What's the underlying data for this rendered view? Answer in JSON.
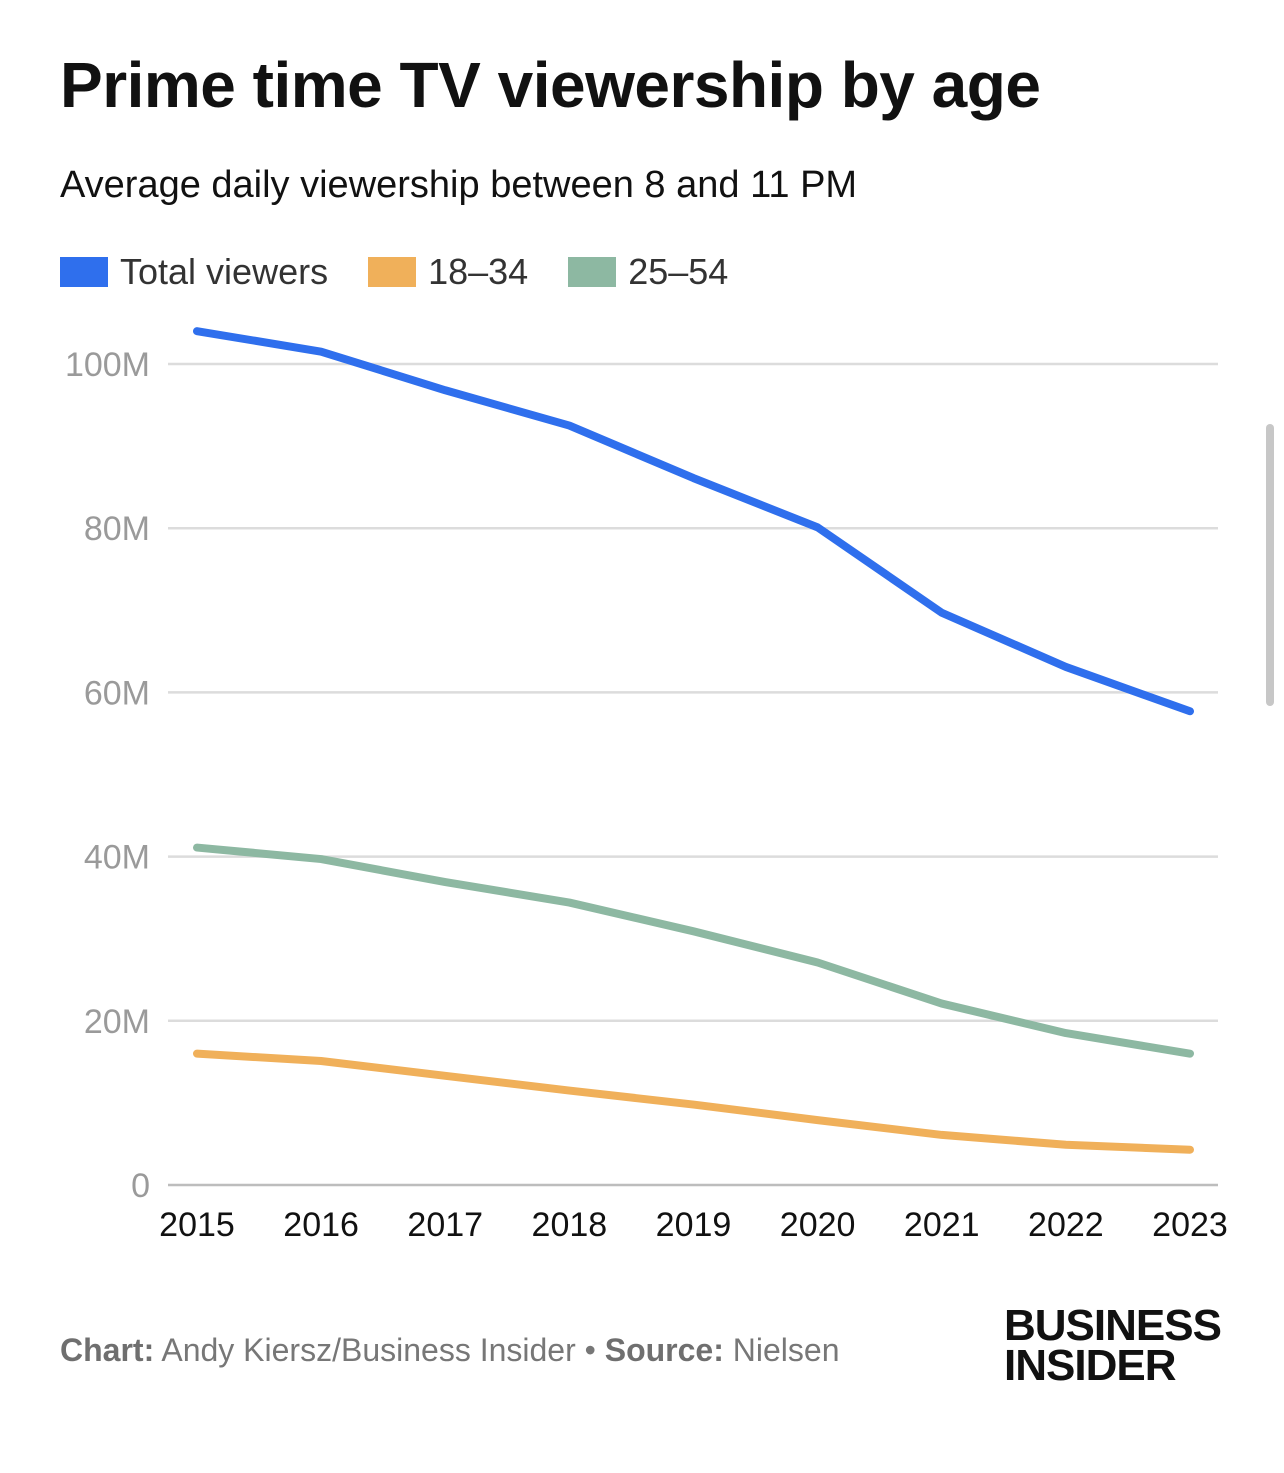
{
  "title": "Prime time TV viewership by age",
  "subtitle": "Average daily viewership between 8 and 11 PM",
  "legend": [
    {
      "label": "Total viewers",
      "color": "#2f6fed"
    },
    {
      "label": "18–34",
      "color": "#f0b05a"
    },
    {
      "label": "25–54",
      "color": "#8db8a2"
    }
  ],
  "footer": {
    "chart_label": "Chart:",
    "chart_credit": "Andy Kiersz/Business Insider",
    "separator": "•",
    "source_label": "Source:",
    "source_value": "Nielsen"
  },
  "logo": {
    "line1": "BUSINESS",
    "line2": "INSIDER"
  },
  "chart_data": {
    "type": "line",
    "title": "Prime time TV viewership by age",
    "subtitle": "Average daily viewership between 8 and 11 PM",
    "xlabel": "",
    "ylabel": "",
    "x": [
      "2015",
      "2016",
      "2017",
      "2018",
      "2019",
      "2020",
      "2021",
      "2022",
      "2023"
    ],
    "ylim": [
      0,
      100000000
    ],
    "yticks": [
      0,
      20000000,
      40000000,
      60000000,
      80000000,
      100000000
    ],
    "ytick_labels": [
      "0",
      "20M",
      "40M",
      "60M",
      "80M",
      "100M"
    ],
    "grid": true,
    "legend_position": "top-left",
    "series": [
      {
        "name": "Total viewers",
        "color": "#2f6fed",
        "values": [
          104000000,
          101500000,
          96800000,
          92500000,
          86100000,
          80100000,
          69700000,
          63100000,
          57700000
        ]
      },
      {
        "name": "18–34",
        "color": "#f0b05a",
        "values": [
          16000000,
          15100000,
          13300000,
          11500000,
          9800000,
          7900000,
          6100000,
          4900000,
          4300000
        ]
      },
      {
        "name": "25–54",
        "color": "#8db8a2",
        "values": [
          41100000,
          39700000,
          36900000,
          34400000,
          30900000,
          27100000,
          22100000,
          18500000,
          16000000
        ]
      }
    ]
  }
}
